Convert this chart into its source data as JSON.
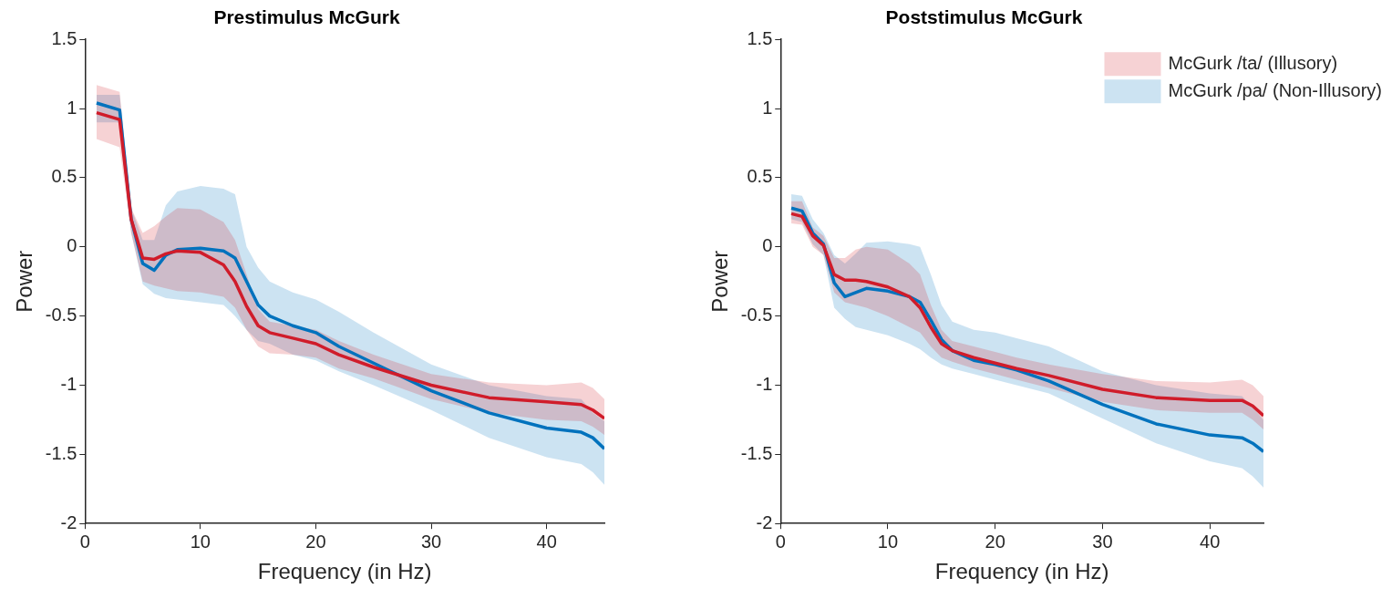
{
  "chart_data": [
    {
      "type": "line",
      "title": "Prestimulus McGurk",
      "xlabel": "Frequency (in Hz)",
      "ylabel": "Power",
      "x": [
        1,
        3,
        4,
        5,
        6,
        7,
        8,
        10,
        12,
        13,
        14,
        15,
        16,
        18,
        20,
        22,
        25,
        30,
        35,
        40,
        43,
        44,
        45
      ],
      "xlim": [
        0,
        45
      ],
      "xticks": [
        0,
        10,
        20,
        30,
        40
      ],
      "ylim": [
        -2,
        1.5
      ],
      "yticks": [
        -2,
        -1.5,
        -1,
        -0.5,
        0,
        0.5,
        1,
        1.5
      ],
      "grid": false,
      "marker": "none",
      "line_style": "solid",
      "series": [
        {
          "color": "#d01c2a",
          "values": [
            0.97,
            0.92,
            0.2,
            -0.08,
            -0.09,
            -0.05,
            -0.03,
            -0.04,
            -0.13,
            -0.25,
            -0.43,
            -0.57,
            -0.62,
            -0.66,
            -0.7,
            -0.78,
            -0.87,
            -1.0,
            -1.09,
            -1.12,
            -1.14,
            -1.18,
            -1.24
          ],
          "lower": [
            0.78,
            0.72,
            0.1,
            -0.25,
            -0.28,
            -0.3,
            -0.32,
            -0.33,
            -0.36,
            -0.44,
            -0.6,
            -0.72,
            -0.77,
            -0.78,
            -0.8,
            -0.88,
            -0.95,
            -1.1,
            -1.2,
            -1.25,
            -1.26,
            -1.3,
            -1.36
          ],
          "upper": [
            1.17,
            1.12,
            0.28,
            0.1,
            0.15,
            0.22,
            0.28,
            0.27,
            0.18,
            0.05,
            -0.2,
            -0.45,
            -0.54,
            -0.57,
            -0.6,
            -0.68,
            -0.78,
            -0.92,
            -0.98,
            -1.0,
            -0.98,
            -1.02,
            -1.1
          ]
        },
        {
          "color": "#0072bd",
          "values": [
            1.04,
            0.99,
            0.2,
            -0.12,
            -0.17,
            -0.06,
            -0.02,
            -0.01,
            -0.03,
            -0.08,
            -0.25,
            -0.42,
            -0.5,
            -0.57,
            -0.62,
            -0.72,
            -0.84,
            -1.04,
            -1.2,
            -1.31,
            -1.34,
            -1.38,
            -1.46
          ],
          "lower": [
            0.9,
            0.9,
            0.1,
            -0.27,
            -0.34,
            -0.37,
            -0.38,
            -0.4,
            -0.42,
            -0.5,
            -0.6,
            -0.68,
            -0.7,
            -0.78,
            -0.82,
            -0.9,
            -1.0,
            -1.18,
            -1.38,
            -1.52,
            -1.57,
            -1.63,
            -1.72
          ],
          "upper": [
            1.1,
            1.1,
            0.28,
            0.05,
            0.05,
            0.3,
            0.4,
            0.44,
            0.42,
            0.38,
            0.0,
            -0.15,
            -0.25,
            -0.33,
            -0.38,
            -0.47,
            -0.62,
            -0.85,
            -1.0,
            -1.08,
            -1.1,
            -1.2,
            -1.26
          ]
        }
      ]
    },
    {
      "type": "line",
      "title": "Poststimulus McGurk",
      "xlabel": "Frequency (in Hz)",
      "ylabel": "Power",
      "x": [
        1,
        2,
        3,
        4,
        5,
        6,
        7,
        8,
        10,
        12,
        13,
        14,
        15,
        16,
        18,
        20,
        22,
        25,
        30,
        35,
        40,
        43,
        44,
        45
      ],
      "xlim": [
        0,
        45
      ],
      "xticks": [
        0,
        10,
        20,
        30,
        40
      ],
      "ylim": [
        -2,
        1.5
      ],
      "yticks": [
        -2,
        -1.5,
        -1,
        -0.5,
        0,
        0.5,
        1,
        1.5
      ],
      "grid": false,
      "legend": "top right",
      "marker": "none",
      "line_style": "solid",
      "series": [
        {
          "name": "McGurk /ta/ (Illusory)",
          "color": "#d01c2a",
          "values": [
            0.24,
            0.22,
            0.08,
            0.01,
            -0.2,
            -0.24,
            -0.24,
            -0.25,
            -0.29,
            -0.36,
            -0.44,
            -0.58,
            -0.7,
            -0.75,
            -0.8,
            -0.84,
            -0.88,
            -0.93,
            -1.03,
            -1.09,
            -1.11,
            -1.11,
            -1.15,
            -1.22
          ],
          "lower": [
            0.17,
            0.16,
            0.0,
            -0.06,
            -0.33,
            -0.4,
            -0.42,
            -0.44,
            -0.5,
            -0.58,
            -0.62,
            -0.72,
            -0.8,
            -0.83,
            -0.88,
            -0.92,
            -0.96,
            -1.02,
            -1.12,
            -1.18,
            -1.2,
            -1.2,
            -1.25,
            -1.32
          ],
          "upper": [
            0.33,
            0.33,
            0.14,
            0.08,
            -0.08,
            -0.08,
            -0.02,
            0.0,
            -0.02,
            -0.12,
            -0.2,
            -0.42,
            -0.6,
            -0.68,
            -0.72,
            -0.76,
            -0.8,
            -0.85,
            -0.92,
            -0.97,
            -0.98,
            -0.96,
            -1.0,
            -1.08
          ]
        },
        {
          "name": "McGurk /pa/ (Non-Illusory)",
          "color": "#0072bd",
          "values": [
            0.28,
            0.26,
            0.1,
            0.02,
            -0.26,
            -0.36,
            -0.33,
            -0.3,
            -0.32,
            -0.36,
            -0.4,
            -0.53,
            -0.67,
            -0.75,
            -0.82,
            -0.85,
            -0.89,
            -0.97,
            -1.14,
            -1.28,
            -1.36,
            -1.38,
            -1.42,
            -1.48
          ],
          "lower": [
            0.2,
            0.18,
            0.02,
            -0.06,
            -0.44,
            -0.52,
            -0.58,
            -0.6,
            -0.64,
            -0.7,
            -0.74,
            -0.8,
            -0.85,
            -0.88,
            -0.92,
            -0.96,
            -1.0,
            -1.06,
            -1.24,
            -1.42,
            -1.55,
            -1.6,
            -1.66,
            -1.74
          ],
          "upper": [
            0.38,
            0.37,
            0.2,
            0.1,
            -0.06,
            -0.12,
            -0.05,
            0.03,
            0.04,
            0.02,
            0.0,
            -0.2,
            -0.42,
            -0.54,
            -0.6,
            -0.62,
            -0.66,
            -0.72,
            -0.9,
            -1.0,
            -1.06,
            -1.08,
            -1.16,
            -1.25
          ]
        }
      ]
    }
  ]
}
